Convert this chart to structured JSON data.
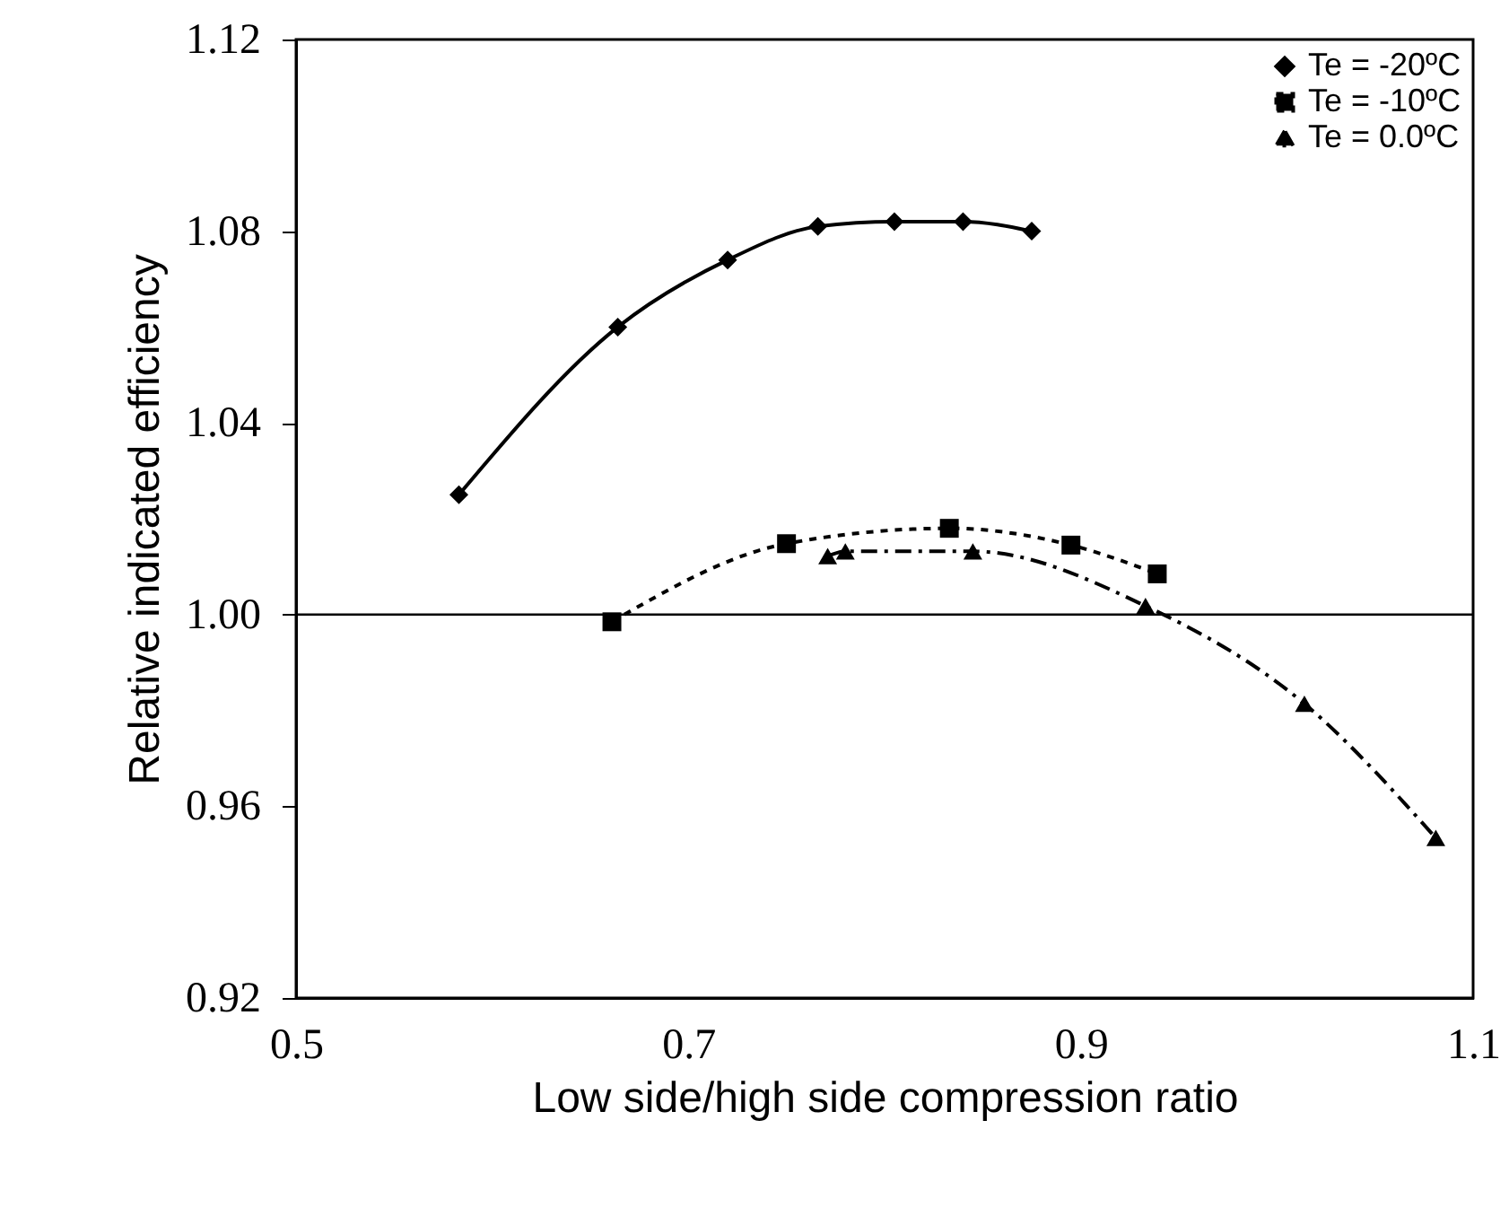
{
  "chart_data": {
    "type": "line",
    "xlabel": "Low side/high side compression ratio",
    "ylabel": "Relative indicated efficiency",
    "xlim": [
      0.5,
      1.1
    ],
    "xticks": [
      0.5,
      0.7,
      0.9,
      1.1
    ],
    "ylim": [
      0.92,
      1.12
    ],
    "yticks": [
      0.92,
      0.96,
      {
        "value": 1,
        "label": "1.00"
      },
      1.04,
      1.08,
      1.12
    ],
    "legend": "top right",
    "grid": false,
    "ref_lines": [
      {
        "axis": "y",
        "value": 1.0,
        "color": "#000000"
      }
    ],
    "series": [
      {
        "name": "Te = -20ºC",
        "color": "#000000",
        "marker": "diamond",
        "line_style": "solid",
        "x": [
          0.583,
          0.664,
          0.72,
          0.766,
          0.805,
          0.84,
          0.875
        ],
        "values": [
          1.025,
          1.06,
          1.074,
          1.081,
          1.082,
          1.082,
          1.08
        ]
      },
      {
        "name": "Te = -10ºC",
        "color": "#000000",
        "marker": "square",
        "line_style": "dotted",
        "x": [
          0.661,
          0.75,
          0.833,
          0.895,
          0.939
        ],
        "values": [
          0.9985,
          1.0148,
          1.018,
          1.0145,
          1.0085
        ]
      },
      {
        "name": "Te = 0.0ºC",
        "color": "#000000",
        "marker": "triangle",
        "line_style": "dashed",
        "x": [
          0.771,
          0.78,
          0.845,
          0.933,
          1.014,
          1.081
        ],
        "values": [
          1.0122,
          1.0132,
          1.0132,
          1.0018,
          0.9814,
          0.9534
        ]
      }
    ]
  }
}
